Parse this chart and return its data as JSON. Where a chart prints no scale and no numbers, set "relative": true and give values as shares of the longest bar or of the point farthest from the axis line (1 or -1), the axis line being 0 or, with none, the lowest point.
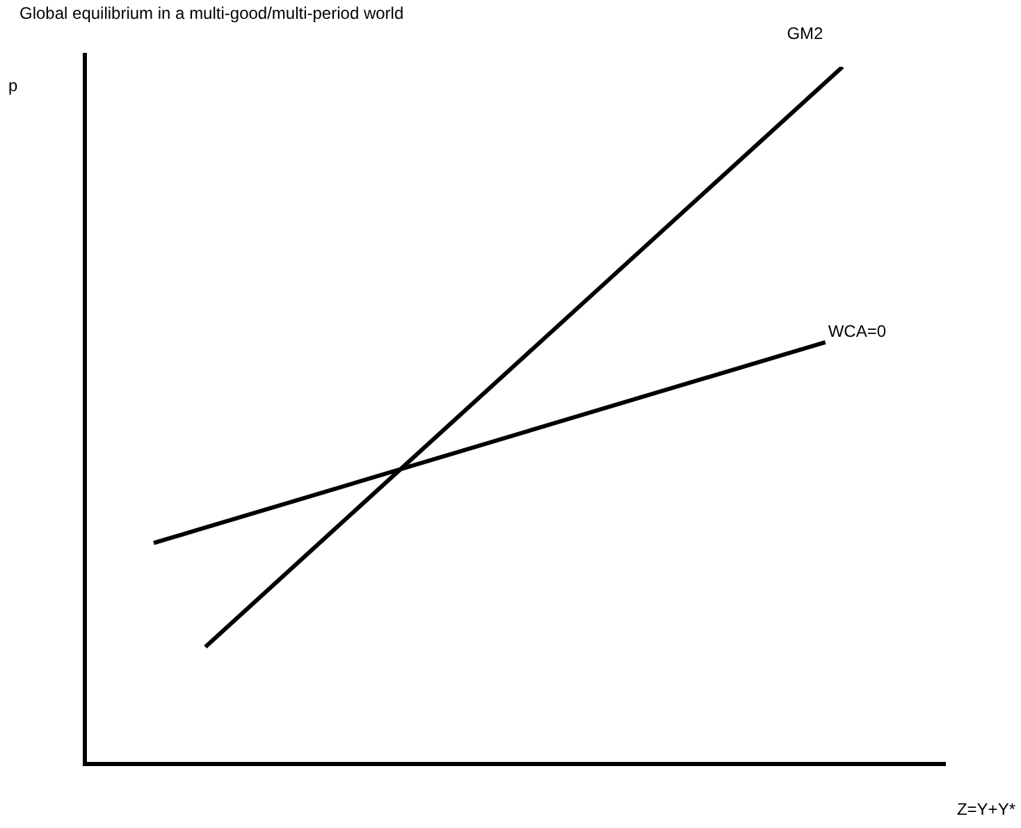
{
  "chart_data": {
    "type": "line",
    "title": "Global equilibrium in a multi-good/multi-period world",
    "xlabel": "Z=Y+Y*",
    "ylabel": "p",
    "relative": true,
    "tick_labels": false,
    "grid": false,
    "legend": false,
    "marker": "none",
    "line_style": "solid",
    "categories": [
      null,
      null,
      null,
      null,
      null,
      null,
      null,
      null,
      null,
      null,
      null,
      null,
      null,
      null,
      null,
      null,
      null,
      null,
      null,
      null,
      null,
      null,
      null,
      null,
      null,
      null,
      null,
      null,
      null,
      null,
      null,
      null,
      null,
      null,
      null,
      null,
      null,
      null,
      null,
      null,
      null,
      null,
      null,
      null,
      null,
      null,
      null,
      null,
      null,
      null,
      null
    ],
    "series": [
      {
        "name": "GM2",
        "color": "#000000",
        "values": [
          null,
          null,
          null,
          null,
          null,
          null,
          null,
          0.168,
          null,
          null,
          null,
          null,
          null,
          null,
          null,
          null,
          null,
          null,
          null,
          null,
          null,
          null,
          null,
          null,
          null,
          null,
          null,
          null,
          null,
          null,
          null,
          null,
          null,
          null,
          null,
          null,
          null,
          null,
          null,
          null,
          null,
          null,
          null,
          null,
          1,
          null,
          null,
          null,
          null,
          null,
          null
        ]
      },
      {
        "name": "WCA=0",
        "color": "#000000",
        "values": [
          null,
          null,
          null,
          null,
          0.317,
          null,
          null,
          null,
          null,
          null,
          null,
          null,
          null,
          null,
          null,
          null,
          null,
          null,
          null,
          null,
          null,
          null,
          null,
          null,
          null,
          null,
          null,
          null,
          null,
          null,
          null,
          null,
          null,
          null,
          null,
          null,
          null,
          null,
          null,
          null,
          null,
          null,
          null,
          0.605,
          null,
          null,
          null,
          null,
          null,
          null,
          null
        ]
      }
    ]
  }
}
